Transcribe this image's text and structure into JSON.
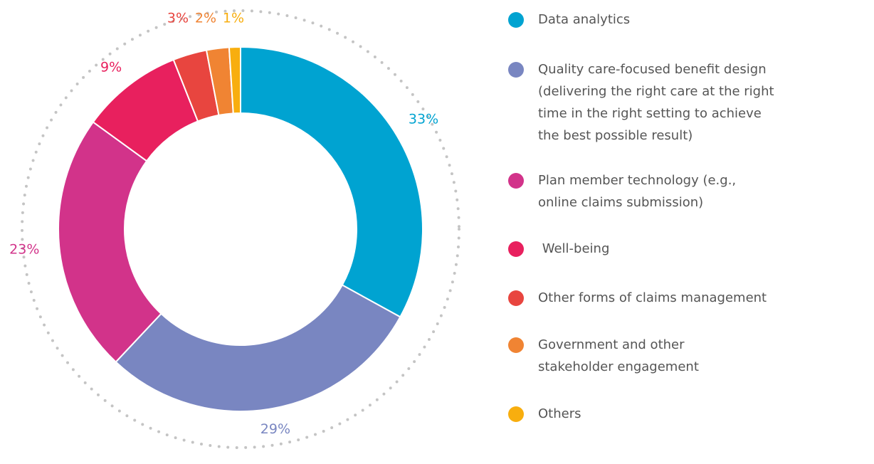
{
  "chart_data": {
    "type": "pie",
    "categories": [
      "Data analytics",
      "Quality care-focused benefit design (delivering the right care at the right time in the right setting to achieve the best possible result)",
      "Plan member technology (e.g., online claims submission)",
      " Well-being",
      "Other forms of claims management",
      "Government and other stakeholder engagement",
      "Others"
    ],
    "values": [
      33,
      29,
      23,
      9,
      3,
      2,
      1
    ],
    "value_labels": [
      "33%",
      "29%",
      "23%",
      "9%",
      "3%",
      "2%",
      "1%"
    ],
    "colors": [
      "#00a3d1",
      "#7986c1",
      "#d2338a",
      "#e8205e",
      "#e8453f",
      "#f08433",
      "#f8ae0e"
    ],
    "legend_placement": "right",
    "style": "donut"
  }
}
